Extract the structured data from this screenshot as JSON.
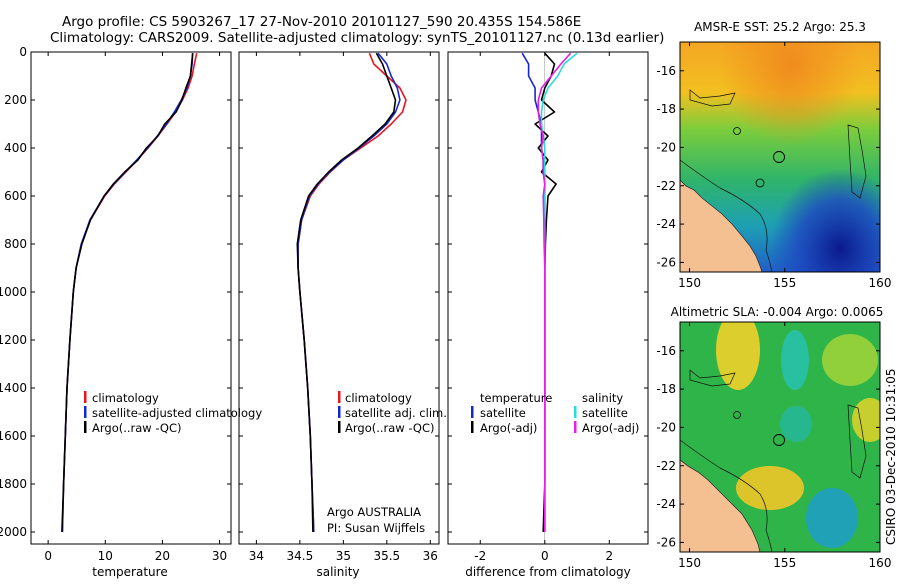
{
  "header": {
    "line1": "Argo profile: CS 5903267_17 27-Nov-2010 20101127_590 20.435S 154.586E",
    "line2": "Climatology: CARS2009. Satellite-adjusted climatology: synTS_20101127.nc (0.13d earlier)"
  },
  "credit": "Argo AUSTRALIA",
  "pi": "PI: Susan Wijffels",
  "side_stamp": "CSIRO 03-Dec-2010 10:31:05",
  "colors": {
    "climatology": "#e8141e",
    "satellite": "#1428d2",
    "argo": "#000000",
    "sat_sal": "#28dcdc",
    "argo_sal": "#e61ee6"
  },
  "chart_data": [
    {
      "type": "line",
      "name": "temperature-profile",
      "xlabel": "temperature",
      "ylabel": "",
      "xlim": [
        -3,
        32
      ],
      "ylim": [
        2050,
        0
      ],
      "xticks": [
        0,
        10,
        20,
        30
      ],
      "yticks": [
        0,
        200,
        400,
        600,
        800,
        1000,
        1200,
        1400,
        1600,
        1800,
        2000
      ],
      "depth": [
        5,
        50,
        100,
        150,
        200,
        250,
        300,
        350,
        400,
        450,
        500,
        550,
        600,
        700,
        800,
        900,
        1000,
        1200,
        1400,
        1600,
        1800,
        2000
      ],
      "series": [
        {
          "name": "climatology",
          "color": "#e8141e",
          "values": [
            26.0,
            25.6,
            25.2,
            24.5,
            23.5,
            22.3,
            20.8,
            19.2,
            17.5,
            15.6,
            13.6,
            11.6,
            9.9,
            7.4,
            5.8,
            4.9,
            4.4,
            3.8,
            3.3,
            3.0,
            2.7,
            2.5
          ]
        },
        {
          "name": "satellite-adjusted climatology",
          "color": "#1428d2",
          "values": [
            25.3,
            25.2,
            24.9,
            24.3,
            23.3,
            22.1,
            20.7,
            19.1,
            17.4,
            15.5,
            13.5,
            11.5,
            9.8,
            7.3,
            5.8,
            4.9,
            4.4,
            3.8,
            3.3,
            3.0,
            2.7,
            2.5
          ]
        },
        {
          "name": "Argo(..raw -QC)",
          "color": "#000000",
          "values": [
            25.3,
            25.1,
            24.9,
            24.1,
            23.4,
            22.4,
            20.4,
            19.2,
            17.2,
            15.7,
            13.4,
            11.4,
            9.8,
            7.4,
            5.9,
            4.9,
            4.4,
            3.8,
            3.3,
            3.0,
            2.7,
            2.4
          ]
        }
      ],
      "legend": [
        "climatology",
        "satellite-adjusted climatology",
        "Argo(..raw -QC)"
      ]
    },
    {
      "type": "line",
      "name": "salinity-profile",
      "xlabel": "salinity",
      "xlim": [
        33.8,
        36.1
      ],
      "ylim": [
        2050,
        0
      ],
      "xticks": [
        34,
        34.5,
        35,
        35.5,
        36
      ],
      "depth": [
        5,
        50,
        100,
        150,
        200,
        250,
        300,
        350,
        400,
        450,
        500,
        550,
        600,
        700,
        800,
        900,
        1000,
        1200,
        1400,
        1600,
        1800,
        2000
      ],
      "series": [
        {
          "name": "climatology",
          "color": "#e8141e",
          "values": [
            35.3,
            35.35,
            35.5,
            35.65,
            35.72,
            35.68,
            35.55,
            35.4,
            35.2,
            35.0,
            34.85,
            34.72,
            34.62,
            34.52,
            34.48,
            34.48,
            34.5,
            34.55,
            34.59,
            34.62,
            34.64,
            34.66
          ]
        },
        {
          "name": "satellite adj. clim.",
          "color": "#1428d2",
          "values": [
            35.4,
            35.5,
            35.55,
            35.62,
            35.65,
            35.6,
            35.5,
            35.35,
            35.18,
            35.0,
            34.84,
            34.71,
            34.61,
            34.52,
            34.48,
            34.48,
            34.5,
            34.55,
            34.59,
            34.62,
            34.64,
            34.66
          ]
        },
        {
          "name": "Argo(..raw -QC)",
          "color": "#000000",
          "values": [
            35.38,
            35.45,
            35.5,
            35.55,
            35.6,
            35.58,
            35.48,
            35.33,
            35.17,
            34.98,
            34.83,
            34.7,
            34.6,
            34.51,
            34.47,
            34.48,
            34.5,
            34.55,
            34.59,
            34.62,
            34.64,
            34.65
          ]
        }
      ],
      "legend": [
        "climatology",
        "satellite adj. clim.",
        "Argo(..raw -QC)"
      ]
    },
    {
      "type": "line",
      "name": "difference-profile",
      "xlabel": "difference from climatology",
      "xlim": [
        -3,
        3.2
      ],
      "ylim": [
        2050,
        0
      ],
      "xticks": [
        -2,
        0,
        2
      ],
      "depth": [
        5,
        50,
        100,
        150,
        200,
        250,
        300,
        350,
        400,
        450,
        500,
        550,
        600,
        700,
        800,
        900,
        1000,
        1200,
        1400,
        1600,
        1800,
        2000
      ],
      "series": [
        {
          "name": "temperature satellite",
          "color": "#1428d2",
          "values": [
            -0.7,
            -0.5,
            -0.5,
            -0.3,
            -0.3,
            -0.2,
            -0.1,
            -0.1,
            -0.1,
            -0.05,
            -0.05,
            0.0,
            0.0,
            0.0,
            0.0,
            0.0,
            0.0,
            0.0,
            0.0,
            0.0,
            0.0,
            0.0
          ]
        },
        {
          "name": "temperature Argo(-adj)",
          "color": "#000000",
          "values": [
            0.0,
            0.3,
            0.2,
            0.0,
            -0.1,
            0.3,
            -0.3,
            0.1,
            -0.2,
            0.1,
            -0.1,
            0.35,
            0.1,
            0.05,
            0.02,
            0.0,
            0.0,
            0.0,
            0.0,
            0.0,
            0.0,
            -0.05
          ]
        },
        {
          "name": "salinity satellite",
          "color": "#28dcdc",
          "values": [
            1.0,
            0.6,
            0.4,
            0.1,
            -0.05,
            -0.1,
            -0.1,
            -0.05,
            0.0,
            0.0,
            0.0,
            0.0,
            0.0,
            0.0,
            0.0,
            0.0,
            0.0,
            0.0,
            0.0,
            0.0,
            0.0,
            0.0
          ]
        },
        {
          "name": "salinity Argo(-adj)",
          "color": "#e61ee6",
          "values": [
            0.8,
            0.5,
            0.2,
            -0.1,
            -0.2,
            -0.2,
            -0.15,
            -0.05,
            -0.1,
            -0.05,
            -0.05,
            0.0,
            -0.05,
            -0.03,
            -0.02,
            0.0,
            0.0,
            0.0,
            0.0,
            0.0,
            0.0,
            0.0
          ]
        }
      ],
      "legend": {
        "temp_title": "temperature",
        "sal_title": "salinity",
        "temp_items": [
          "satellite",
          "Argo(-adj)"
        ],
        "sal_items": [
          "satellite",
          "Argo(-adj)"
        ]
      }
    },
    {
      "type": "heatmap",
      "name": "sst-map",
      "title": "AMSR-E SST: 25.2 Argo: 25.3",
      "xlim": [
        149.5,
        160
      ],
      "ylim": [
        -26.5,
        -14.5
      ],
      "xticks": [
        150,
        155,
        160
      ],
      "yticks": [
        -16,
        -18,
        -20,
        -22,
        -24,
        -26
      ],
      "argo_position": [
        154.586,
        -20.435
      ]
    },
    {
      "type": "heatmap",
      "name": "sla-map",
      "title": "Altimetric SLA: -0.004 Argo: 0.0065",
      "xlim": [
        149.5,
        160
      ],
      "ylim": [
        -26.5,
        -14.5
      ],
      "xticks": [
        150,
        155,
        160
      ],
      "yticks": [
        -16,
        -18,
        -20,
        -22,
        -24,
        -26
      ],
      "argo_position": [
        154.586,
        -20.435
      ]
    }
  ]
}
